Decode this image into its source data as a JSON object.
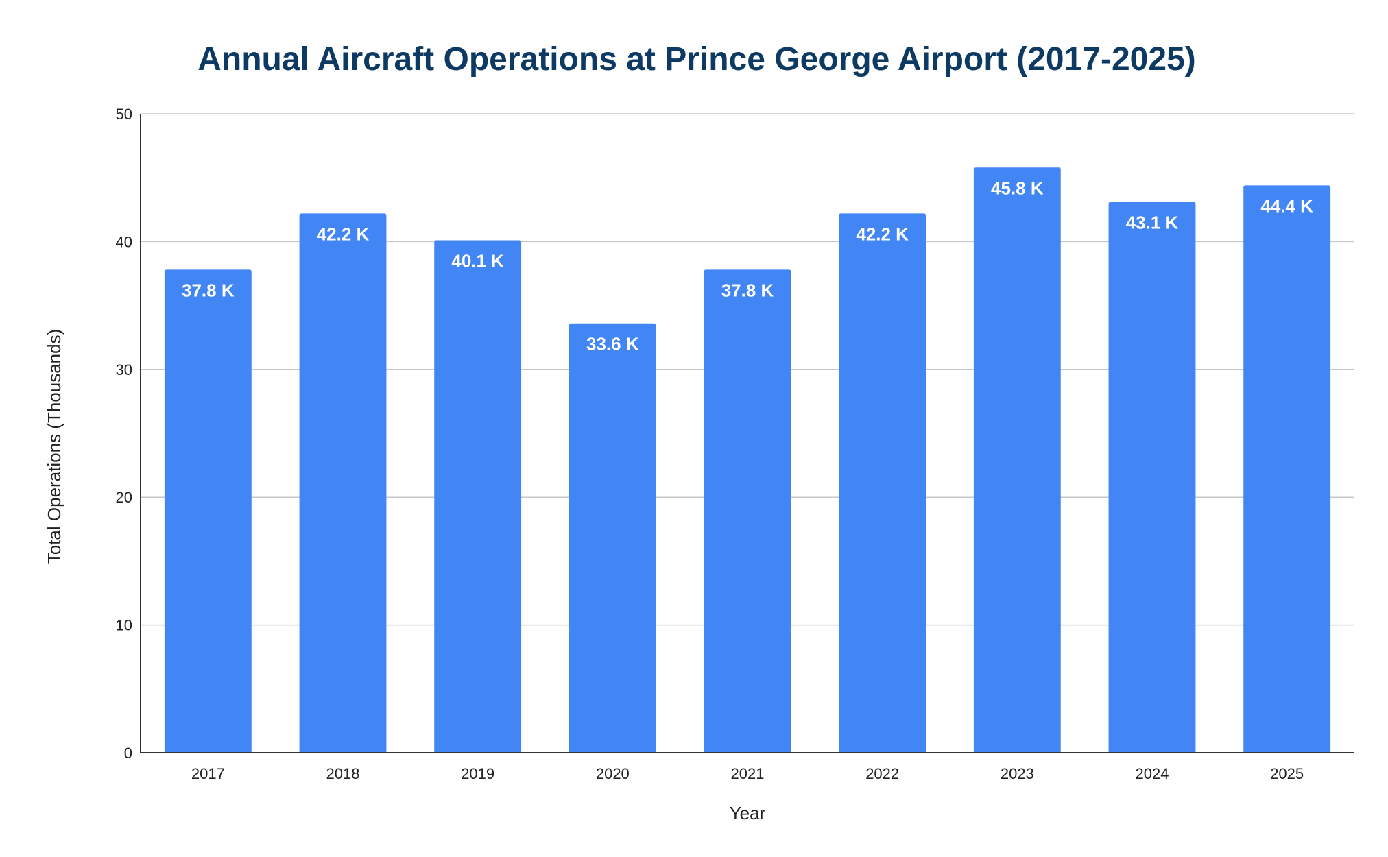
{
  "colors": {
    "bar": "#4285f4",
    "title": "#0d3a63",
    "gridline": "#c7c7c7",
    "axis": "#333333",
    "bar_label": "#ffffff"
  },
  "chart_data": {
    "type": "bar",
    "title": "Annual Aircraft Operations at Prince George Airport (2017-2025)",
    "xlabel": "Year",
    "ylabel": "Total Operations (Thousands)",
    "categories": [
      "2017",
      "2018",
      "2019",
      "2020",
      "2021",
      "2022",
      "2023",
      "2024",
      "2025"
    ],
    "values": [
      37.8,
      42.2,
      40.1,
      33.6,
      37.8,
      42.2,
      45.8,
      43.1,
      44.4
    ],
    "data_labels": [
      "37.8 K",
      "42.2 K",
      "40.1 K",
      "33.6 K",
      "37.8 K",
      "42.2 K",
      "45.8 K",
      "43.1 K",
      "44.4 K"
    ],
    "ylim": [
      0,
      50
    ],
    "yticks": [
      0,
      10,
      20,
      30,
      40,
      50
    ],
    "grid": true,
    "legend": "none"
  }
}
